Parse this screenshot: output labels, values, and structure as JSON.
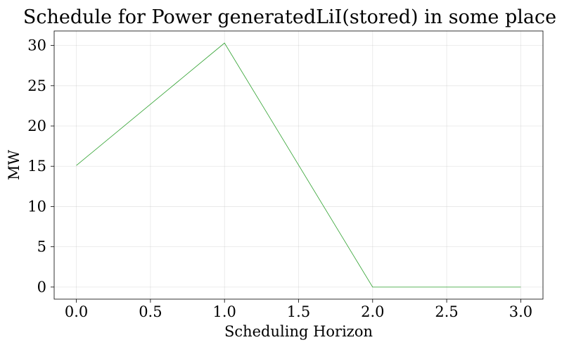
{
  "chart_data": {
    "type": "line",
    "title": "Schedule for Power generatedLiI(stored) in some place",
    "xlabel": "Scheduling Horizon",
    "ylabel": "MW",
    "xlim": [
      -0.15,
      3.15
    ],
    "ylim": [
      -1.5,
      31.8
    ],
    "xticks": [
      0.0,
      0.5,
      1.0,
      1.5,
      2.0,
      2.5,
      3.0
    ],
    "xtick_labels": [
      "0.0",
      "0.5",
      "1.0",
      "1.5",
      "2.0",
      "2.5",
      "3.0"
    ],
    "yticks": [
      0,
      5,
      10,
      15,
      20,
      25,
      30
    ],
    "ytick_labels": [
      "0",
      "5",
      "10",
      "15",
      "20",
      "25",
      "30"
    ],
    "grid": true,
    "series": [
      {
        "color": "#2ca02c",
        "x": [
          0,
          1,
          2,
          3
        ],
        "values": [
          15.1,
          30.3,
          0,
          0
        ]
      }
    ]
  }
}
